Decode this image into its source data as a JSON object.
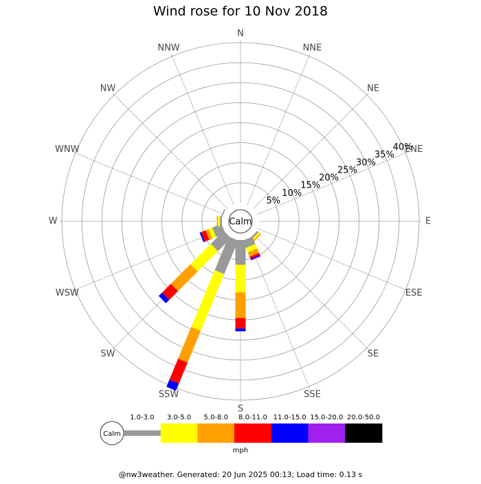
{
  "chart_data": {
    "type": "windrose",
    "title": "Wind rose for 10 Nov 2018",
    "categories": [
      "N",
      "NNE",
      "NE",
      "ENE",
      "E",
      "ESE",
      "SE",
      "SSE",
      "S",
      "SSW",
      "SW",
      "WSW",
      "W",
      "WNW",
      "NW",
      "NNW"
    ],
    "series": [
      {
        "name": "1.0-3.0",
        "color": "#999999",
        "values": [
          0,
          0,
          0,
          0,
          0,
          0,
          0.5,
          2,
          6.2,
          9.1,
          4.6,
          2.5,
          0.5,
          0.3,
          0,
          0
        ]
      },
      {
        "name": "3.0-5.0",
        "color": "#ffff00",
        "values": [
          0,
          0,
          0,
          0,
          0,
          0,
          0.5,
          1.2,
          6.9,
          15.3,
          7.2,
          1,
          0.5,
          0,
          0,
          0
        ]
      },
      {
        "name": "5.0-8.0",
        "color": "#ffa000",
        "values": [
          0,
          0,
          0,
          0,
          0,
          0,
          0.3,
          1.2,
          6.4,
          8.6,
          6.9,
          0.8,
          0.3,
          0,
          0,
          0
        ]
      },
      {
        "name": "8.0-11.0",
        "color": "#ff0000",
        "values": [
          0,
          0,
          0,
          0,
          0,
          0,
          0,
          0.5,
          2.6,
          5.7,
          3.1,
          1.2,
          0,
          0,
          0,
          0
        ]
      },
      {
        "name": "11.0-15.0",
        "color": "#0000ff",
        "values": [
          0,
          0,
          0,
          0,
          0,
          0,
          0,
          0.3,
          0.7,
          1.9,
          1.2,
          0.4,
          0,
          0,
          0,
          0
        ]
      },
      {
        "name": "15.0-20.0",
        "color": "#a020f0",
        "values": [
          0,
          0,
          0,
          0,
          0,
          0,
          0,
          0.2,
          0,
          0,
          0,
          0,
          0,
          0,
          0,
          0
        ]
      },
      {
        "name": "20.0-50.0",
        "color": "#000000",
        "values": [
          0,
          0,
          0,
          0,
          0,
          0,
          0,
          0,
          0,
          0,
          0,
          0,
          0,
          0,
          0,
          0
        ]
      }
    ],
    "rlim": [
      0,
      40
    ],
    "rticks": [
      {
        "value": 5,
        "label": "5%"
      },
      {
        "value": 10,
        "label": "10%"
      },
      {
        "value": 15,
        "label": "15%"
      },
      {
        "value": 20,
        "label": "20%"
      },
      {
        "value": 25,
        "label": "25%"
      },
      {
        "value": 30,
        "label": "30%"
      },
      {
        "value": 35,
        "label": "35%"
      },
      {
        "value": 40,
        "label": "40%"
      }
    ],
    "calm_label": "Calm",
    "unit_label": "mph",
    "footer": "@nw3weather. Generated: 20 Jun 2025 00:13; Load time: 0.13 s"
  }
}
